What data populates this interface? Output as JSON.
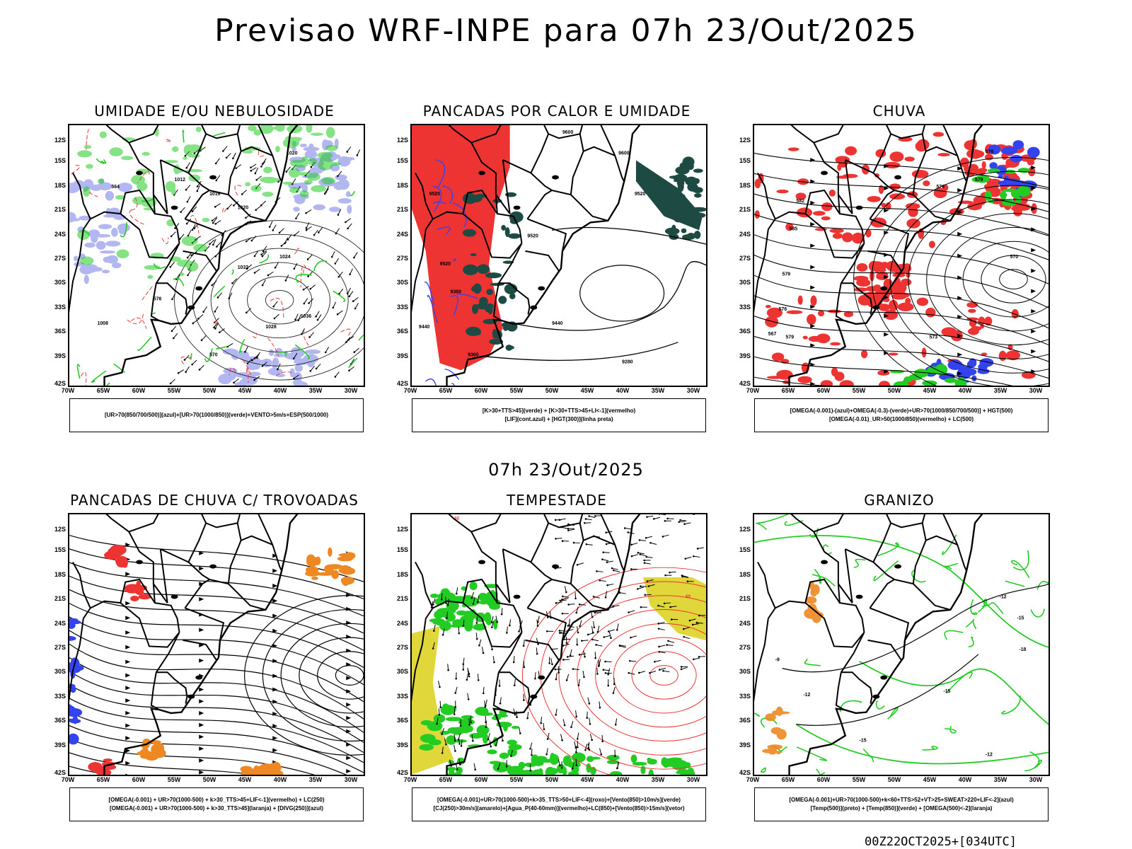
{
  "title": "Previsao WRF-INPE  para 07h 23/Out/2025",
  "subtitle": "07h 23/Out/2025",
  "footer": "00Z22OCT2025+[034UTC]",
  "lat_labels": [
    "12S",
    "15S",
    "18S",
    "21S",
    "24S",
    "27S",
    "30S",
    "33S",
    "36S",
    "39S",
    "42S"
  ],
  "lon_labels": [
    "70W",
    "65W",
    "60W",
    "55W",
    "50W",
    "45W",
    "40W",
    "35W",
    "30W"
  ],
  "colors": {
    "green": "#22cc22",
    "red": "#ee3333",
    "blue": "#3344ee",
    "lavender": "#aab0f0",
    "darkgreen": "#1e4a44",
    "yellow": "#e0d83a",
    "orange": "#ee8822"
  },
  "panels": [
    {
      "title": "UMIDADE E/OU NEBULOSIDADE",
      "legend": [
        "[UR>70(850/700/500)](azul)+[UR>70(1000/850)](verde)+VENTO>5m/s+ESP(500/1000)"
      ],
      "contour_labels": [
        "1020",
        "1012",
        "1016",
        "1020",
        "1024",
        "1028",
        "1032",
        "1036",
        "1008",
        "576",
        "564",
        "570"
      ]
    },
    {
      "title": "PANCADAS POR CALOR E UMIDADE",
      "legend": [
        "[K>30+TTS>45](verde) + [K>30+TTS>45+LI<-1](vermelho)",
        "[LIF](cont.azul) + [HGT(300)](linha preta)"
      ],
      "contour_labels": [
        "9600",
        "9600",
        "9520",
        "9520",
        "9520",
        "9440",
        "9360",
        "9280",
        "9440",
        "9360",
        "9520"
      ]
    },
    {
      "title": "CHUVA",
      "legend": [
        "[OMEGA(-0.001)-(azul)+OMEGA(-0.3)-(verde)+UR>70(1000/850/700/500)] + HGT(500)",
        "[OMEGA(-0.01)_UR>50(1000/850)(vermelho) + LC(500)"
      ],
      "contour_labels": [
        "579",
        "576",
        "579",
        "573",
        "576",
        "570",
        "567",
        "579",
        "576",
        "582",
        "585"
      ]
    },
    {
      "title": "PANCADAS DE CHUVA C/ TROVOADAS",
      "legend": [
        "[OMEGA(-0.001) + UR>70(1000-500) + k>30_TTS>45+LIF<-1](vermelho) + LC(250)",
        "[OMEGA(-0.001) + UR>70(1000-500) + k>30_TTS>45](laranja) + [DIVG(250)](azul)"
      ],
      "contour_labels": []
    },
    {
      "title": "TEMPESTADE",
      "legend": [
        "[OMEGA(-0.001)+UR>70(1000-500)+k>35_TTS>50+LIF<-4](roxo)+[Vento(850)>10m/s](verde)",
        "[CJ(250)>30m/s](amarelo)+[Agua_P(40-60mm)](vermelho)+LC(850)+[Vento(850)>15m/s](vetor)"
      ],
      "contour_labels": [
        "40",
        "40"
      ]
    },
    {
      "title": "GRANIZO",
      "legend": [
        "[OMEGA(-0.001)+UR>70(1000-500)+k<60+TTS>52+VT>25+SWEAT>220+LIF<-2](azul)",
        "[Temp(500)](preto) + [Temp(850)](verde) + [OMEGA(500)<-2](laranja)"
      ],
      "contour_labels": [
        "-12",
        "-15",
        "-18",
        "-12",
        "-15",
        "-15",
        "-12",
        "-9"
      ]
    }
  ]
}
